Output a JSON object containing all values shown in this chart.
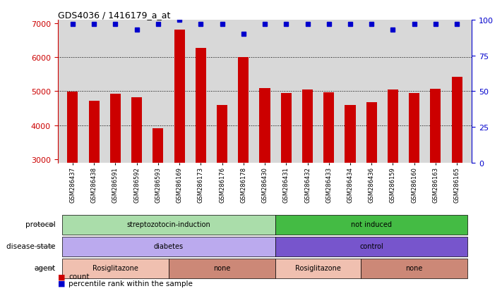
{
  "title": "GDS4036 / 1416179_a_at",
  "samples": [
    "GSM286437",
    "GSM286438",
    "GSM286591",
    "GSM286592",
    "GSM286593",
    "GSM286169",
    "GSM286173",
    "GSM286176",
    "GSM286178",
    "GSM286430",
    "GSM286431",
    "GSM286432",
    "GSM286433",
    "GSM286434",
    "GSM286436",
    "GSM286159",
    "GSM286160",
    "GSM286163",
    "GSM286165"
  ],
  "counts": [
    4980,
    4720,
    4930,
    4820,
    3920,
    6800,
    6280,
    4600,
    6010,
    5100,
    4940,
    5050,
    4960,
    4600,
    4680,
    5040,
    4940,
    5080,
    5430
  ],
  "percentiles": [
    97,
    97,
    97,
    93,
    97,
    100,
    97,
    97,
    90,
    97,
    97,
    97,
    97,
    97,
    97,
    93,
    97,
    97,
    97
  ],
  "ylim_left": [
    2900,
    7100
  ],
  "yticks_left": [
    3000,
    4000,
    5000,
    6000,
    7000
  ],
  "ylim_right": [
    0,
    100
  ],
  "yticks_right": [
    0,
    25,
    50,
    75,
    100
  ],
  "bar_color": "#cc0000",
  "dot_color": "#0000cc",
  "bg_color": "#d8d8d8",
  "protocol_groups": [
    {
      "label": "streptozotocin-induction",
      "start": 0,
      "end": 10,
      "color": "#aaddaa"
    },
    {
      "label": "not induced",
      "start": 10,
      "end": 19,
      "color": "#44bb44"
    }
  ],
  "disease_groups": [
    {
      "label": "diabetes",
      "start": 0,
      "end": 10,
      "color": "#bbaaee"
    },
    {
      "label": "control",
      "start": 10,
      "end": 19,
      "color": "#7755cc"
    }
  ],
  "agent_groups": [
    {
      "label": "Rosiglitazone",
      "start": 0,
      "end": 5,
      "color": "#f0c0b0"
    },
    {
      "label": "none",
      "start": 5,
      "end": 10,
      "color": "#cc8877"
    },
    {
      "label": "Rosiglitazone",
      "start": 10,
      "end": 14,
      "color": "#f0c0b0"
    },
    {
      "label": "none",
      "start": 14,
      "end": 19,
      "color": "#cc8877"
    }
  ],
  "row_labels": [
    "protocol",
    "disease state",
    "agent"
  ],
  "legend_items": [
    {
      "color": "#cc0000",
      "label": "count"
    },
    {
      "color": "#0000cc",
      "label": "percentile rank within the sample"
    }
  ]
}
